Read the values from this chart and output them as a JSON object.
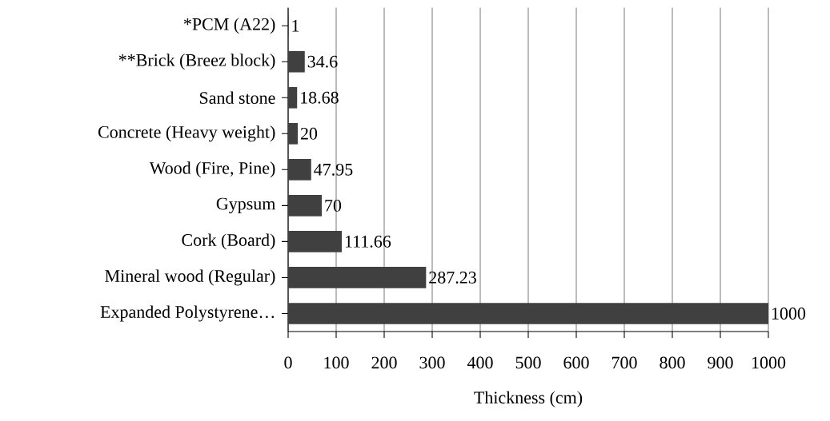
{
  "chart_data": {
    "type": "bar",
    "orientation": "horizontal",
    "xlabel": "Thickness (cm)",
    "categories": [
      "*PCM (A22)",
      "**Brick (Breez block)",
      "Sand stone",
      "Concrete (Heavy weight)",
      "Wood (Fire, Pine)",
      "Gypsum",
      "Cork (Board)",
      "Mineral wood (Regular)",
      "Expanded Polystyrene…"
    ],
    "values": [
      1,
      34.6,
      18.68,
      20,
      47.95,
      70,
      111.66,
      287.23,
      1000
    ],
    "color": "#404040",
    "data_labels": true,
    "xlim": [
      0,
      1000
    ],
    "xticks": [
      0,
      100,
      200,
      300,
      400,
      500,
      600,
      700,
      800,
      900,
      1000
    ],
    "grid": "x"
  }
}
